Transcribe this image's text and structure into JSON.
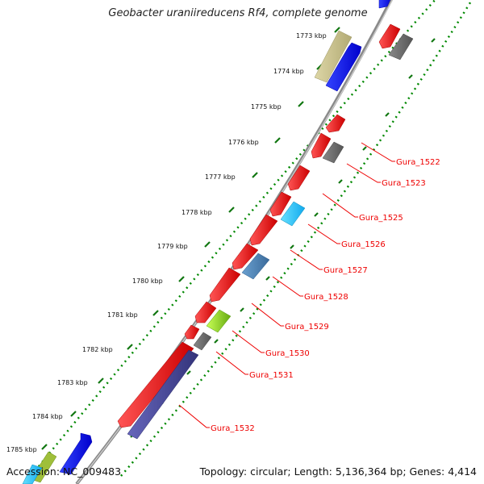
{
  "title": "Geobacter uraniireducens Rf4, complete genome",
  "accession": "Accession: NC_009483",
  "summary": "Topology: circular; Length: 5,136,364 bp; Genes: 4,414",
  "kbp_ticks": [
    "1773 kbp",
    "1774 kbp",
    "1775 kbp",
    "1776 kbp",
    "1777 kbp",
    "1778 kbp",
    "1779 kbp",
    "1780 kbp",
    "1781 kbp",
    "1782 kbp",
    "1783 kbp",
    "1784 kbp",
    "1785 kbp"
  ],
  "gene_labels": [
    "Gura_1522",
    "Gura_1523",
    "Gura_1525",
    "Gura_1526",
    "Gura_1527",
    "Gura_1528",
    "Gura_1529",
    "Gura_1530",
    "Gura_1531",
    "Gura_1532"
  ],
  "colors": {
    "forward_cds": "#0000ee",
    "reverse_cds": "#ee0000",
    "grey_feature": "#666666",
    "khaki_feature": "#c9c28e",
    "cyan_feature": "#22ccff",
    "steel_feature": "#4682b4",
    "lime_feature": "#99dd22",
    "navy_feature": "#4a4aa0",
    "backbone": "#888888",
    "dotted_ring": "#008800",
    "label": "#ee0000"
  }
}
